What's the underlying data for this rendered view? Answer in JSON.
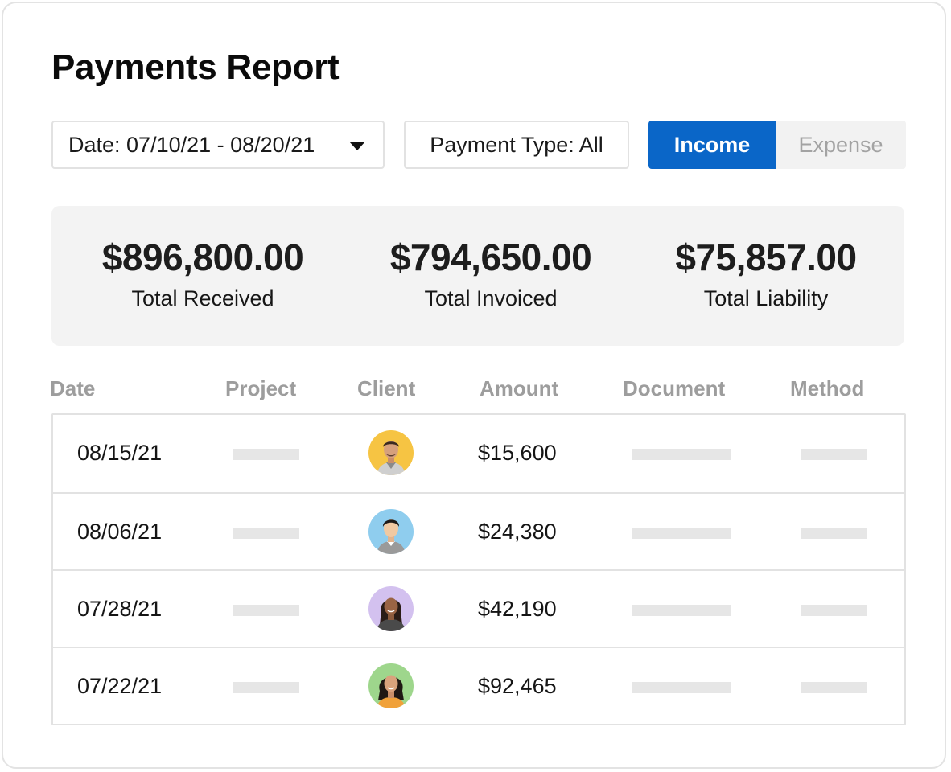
{
  "report": {
    "title": "Payments Report"
  },
  "filters": {
    "date_label": "Date: 07/10/21 - 08/20/21",
    "payment_type_label": "Payment Type: All"
  },
  "toggle": {
    "income_label": "Income",
    "expense_label": "Expense",
    "selected": "Income",
    "active_color": "#0a66c8"
  },
  "summary": {
    "received": {
      "value": "$896,800.00",
      "label": "Total Received"
    },
    "invoiced": {
      "value": "$794,650.00",
      "label": "Total Invoiced"
    },
    "liability": {
      "value": "$75,857.00",
      "label": "Total Liability"
    }
  },
  "table": {
    "columns": [
      "Date",
      "Project",
      "Client",
      "Amount",
      "Document",
      "Method"
    ],
    "rows": [
      {
        "date": "08/15/21",
        "amount": "$15,600",
        "client_avatar": "avatar-man-yellow"
      },
      {
        "date": "08/06/21",
        "amount": "$24,380",
        "client_avatar": "avatar-man-blue"
      },
      {
        "date": "07/28/21",
        "amount": "$42,190",
        "client_avatar": "avatar-woman-purple"
      },
      {
        "date": "07/22/21",
        "amount": "$92,465",
        "client_avatar": "avatar-woman-green"
      }
    ]
  },
  "avatar_colors": {
    "yellow": "#f6c443",
    "blue": "#8fcdee",
    "purple": "#d3c1ef",
    "green": "#9ed68c"
  }
}
